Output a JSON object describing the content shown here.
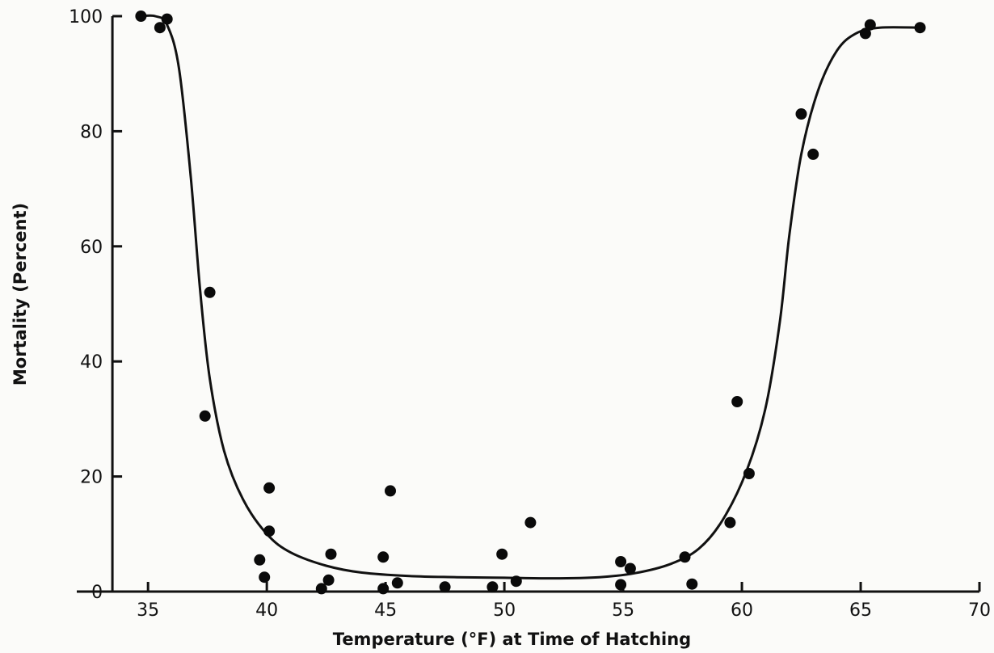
{
  "chart_data": {
    "type": "scatter",
    "title": "",
    "xlabel": "Temperature (°F) at Time of Hatching",
    "ylabel": "Mortality (Percent)",
    "xlim": [
      32,
      70
    ],
    "ylim": [
      0,
      100
    ],
    "x_ticks": [
      35,
      40,
      45,
      50,
      55,
      60,
      65,
      70
    ],
    "y_ticks": [
      0,
      20,
      40,
      60,
      80,
      100
    ],
    "grid": false,
    "legend": "none",
    "series": [
      {
        "type": "scatter",
        "points": [
          {
            "x": 34.7,
            "y": 100
          },
          {
            "x": 35.5,
            "y": 98
          },
          {
            "x": 35.8,
            "y": 99.5
          },
          {
            "x": 37.4,
            "y": 30.5
          },
          {
            "x": 37.6,
            "y": 52
          },
          {
            "x": 39.7,
            "y": 5.5
          },
          {
            "x": 39.9,
            "y": 2.5
          },
          {
            "x": 40.1,
            "y": 18
          },
          {
            "x": 40.1,
            "y": 10.5
          },
          {
            "x": 42.3,
            "y": 0.5
          },
          {
            "x": 42.6,
            "y": 2
          },
          {
            "x": 42.7,
            "y": 6.5
          },
          {
            "x": 44.9,
            "y": 6
          },
          {
            "x": 44.9,
            "y": 0.5
          },
          {
            "x": 45.2,
            "y": 17.5
          },
          {
            "x": 45.5,
            "y": 1.5
          },
          {
            "x": 47.5,
            "y": 0.8
          },
          {
            "x": 49.5,
            "y": 0.8
          },
          {
            "x": 49.9,
            "y": 6.5
          },
          {
            "x": 50.5,
            "y": 1.8
          },
          {
            "x": 51.1,
            "y": 12
          },
          {
            "x": 54.9,
            "y": 5.2
          },
          {
            "x": 54.9,
            "y": 1.2
          },
          {
            "x": 55.3,
            "y": 4
          },
          {
            "x": 57.6,
            "y": 6
          },
          {
            "x": 57.9,
            "y": 1.3
          },
          {
            "x": 59.5,
            "y": 12
          },
          {
            "x": 59.8,
            "y": 33
          },
          {
            "x": 60.3,
            "y": 20.5
          },
          {
            "x": 62.5,
            "y": 83
          },
          {
            "x": 63,
            "y": 76
          },
          {
            "x": 65.2,
            "y": 97
          },
          {
            "x": 65.4,
            "y": 98.5
          },
          {
            "x": 67.5,
            "y": 98
          }
        ]
      },
      {
        "type": "line",
        "smooth": true,
        "points": [
          {
            "x": 34.7,
            "y": 100
          },
          {
            "x": 35.3,
            "y": 100
          },
          {
            "x": 35.8,
            "y": 98.5
          },
          {
            "x": 36.3,
            "y": 91
          },
          {
            "x": 36.8,
            "y": 72
          },
          {
            "x": 37.2,
            "y": 52
          },
          {
            "x": 37.6,
            "y": 37
          },
          {
            "x": 38.2,
            "y": 24.5
          },
          {
            "x": 39,
            "y": 16
          },
          {
            "x": 40,
            "y": 10
          },
          {
            "x": 41,
            "y": 6.8
          },
          {
            "x": 42.5,
            "y": 4.5
          },
          {
            "x": 44,
            "y": 3.3
          },
          {
            "x": 46,
            "y": 2.7
          },
          {
            "x": 48,
            "y": 2.5
          },
          {
            "x": 50,
            "y": 2.4
          },
          {
            "x": 52,
            "y": 2.3
          },
          {
            "x": 54,
            "y": 2.5
          },
          {
            "x": 55.5,
            "y": 3.2
          },
          {
            "x": 57,
            "y": 4.8
          },
          {
            "x": 58.2,
            "y": 7.5
          },
          {
            "x": 59.2,
            "y": 12.5
          },
          {
            "x": 60.2,
            "y": 21
          },
          {
            "x": 61,
            "y": 32
          },
          {
            "x": 61.6,
            "y": 47
          },
          {
            "x": 62,
            "y": 62
          },
          {
            "x": 62.5,
            "y": 76
          },
          {
            "x": 63.2,
            "y": 87
          },
          {
            "x": 64,
            "y": 94
          },
          {
            "x": 64.8,
            "y": 97
          },
          {
            "x": 65.8,
            "y": 98
          },
          {
            "x": 67.5,
            "y": 98
          }
        ]
      }
    ]
  }
}
